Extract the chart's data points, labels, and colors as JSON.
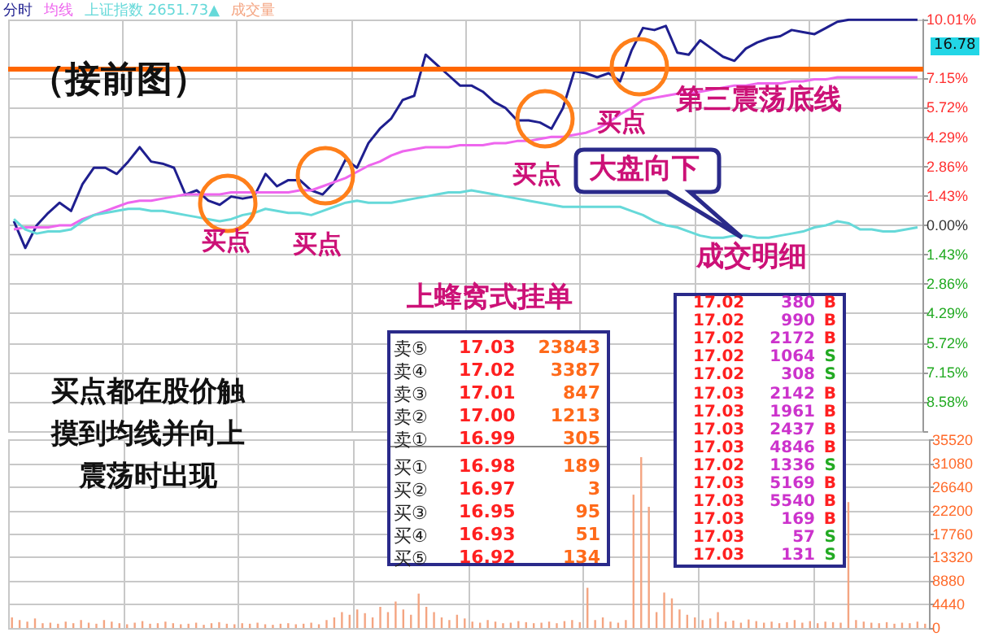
{
  "chart_data": [
    {
      "type": "line",
      "categories": [
        null,
        null,
        null,
        null,
        null,
        null,
        null,
        null,
        null,
        null,
        null,
        null,
        null,
        null,
        null,
        null,
        null,
        null,
        null,
        null,
        null,
        null,
        null,
        null,
        null,
        null,
        null,
        null,
        null,
        null,
        null,
        null,
        null,
        null,
        null,
        null,
        null,
        null,
        null,
        null,
        null,
        null,
        null,
        null,
        null,
        null,
        null,
        null,
        null,
        null,
        null,
        null,
        null,
        null,
        null,
        null,
        null,
        null,
        null,
        null,
        null,
        null,
        null,
        null,
        null,
        null,
        null,
        null,
        null,
        null,
        null,
        null,
        null,
        null,
        null,
        null,
        null,
        null,
        null,
        null
      ],
      "series": [
        {
          "name": "分时",
          "color": "#1f1f8f",
          "values": [
            0.2,
            -1.1,
            0.0,
            0.6,
            1.1,
            0.7,
            2.0,
            2.8,
            2.8,
            2.5,
            3.1,
            3.8,
            3.1,
            3.0,
            2.8,
            1.5,
            1.7,
            1.2,
            1.0,
            1.4,
            1.3,
            1.4,
            2.5,
            1.9,
            2.2,
            2.2,
            1.7,
            1.5,
            2.1,
            3.2,
            2.8,
            4.0,
            4.7,
            5.2,
            6.1,
            6.3,
            8.3,
            7.8,
            7.3,
            6.8,
            6.8,
            6.5,
            6.0,
            5.7,
            5.1,
            5.1,
            5.0,
            4.7,
            5.7,
            7.5,
            7.4,
            7.2,
            7.4,
            7.0,
            8.5,
            9.6,
            9.5,
            9.7,
            8.4,
            8.3,
            9.0,
            8.6,
            8.2,
            8.0,
            8.6,
            8.9,
            9.1,
            9.2,
            9.5,
            9.4,
            9.3,
            9.6,
            9.9,
            10.0,
            10.0,
            10.0,
            10.0,
            10.0,
            10.0,
            10.0
          ]
        },
        {
          "name": "均线",
          "color": "#ee66ee",
          "values": [
            -0.2,
            -0.1,
            -0.1,
            -0.1,
            0.0,
            0.0,
            0.3,
            0.5,
            0.7,
            0.9,
            1.1,
            1.2,
            1.2,
            1.3,
            1.4,
            1.5,
            1.5,
            1.5,
            1.5,
            1.6,
            1.6,
            1.6,
            1.6,
            1.6,
            1.6,
            1.7,
            1.7,
            1.9,
            2.1,
            2.3,
            2.6,
            2.9,
            3.1,
            3.4,
            3.6,
            3.7,
            3.8,
            3.8,
            3.8,
            3.9,
            3.9,
            3.9,
            4.0,
            4.0,
            4.1,
            4.1,
            4.2,
            4.3,
            4.3,
            4.4,
            4.5,
            4.7,
            5.0,
            5.4,
            5.7,
            6.1,
            6.2,
            6.3,
            6.4,
            6.4,
            6.5,
            6.6,
            6.7,
            6.8,
            6.8,
            6.9,
            6.9,
            6.9,
            7.0,
            7.0,
            7.1,
            7.1,
            7.2,
            7.2,
            7.2,
            7.2,
            7.2,
            7.2,
            7.2,
            7.2
          ]
        },
        {
          "name": "上证指数 2651.73▲",
          "color": "#66d9d9",
          "values": [
            0.3,
            -0.2,
            -0.4,
            -0.3,
            -0.3,
            -0.2,
            0.2,
            0.5,
            0.6,
            0.7,
            0.8,
            0.8,
            0.7,
            0.7,
            0.6,
            0.5,
            0.4,
            0.3,
            0.2,
            0.3,
            0.5,
            0.6,
            0.8,
            0.7,
            0.6,
            0.6,
            0.5,
            0.7,
            0.9,
            1.1,
            1.2,
            1.1,
            1.1,
            1.1,
            1.2,
            1.3,
            1.4,
            1.5,
            1.6,
            1.6,
            1.7,
            1.6,
            1.5,
            1.4,
            1.3,
            1.2,
            1.1,
            1.0,
            0.9,
            0.9,
            0.9,
            0.9,
            0.9,
            0.9,
            0.7,
            0.5,
            0.2,
            0.0,
            -0.1,
            -0.3,
            -0.5,
            -0.6,
            -0.6,
            -0.5,
            -0.5,
            -0.6,
            -0.6,
            -0.5,
            -0.4,
            -0.3,
            -0.1,
            0.0,
            0.2,
            0.1,
            -0.2,
            -0.2,
            -0.3,
            -0.3,
            -0.2,
            -0.1
          ]
        }
      ],
      "ylim": [
        -10.01,
        10.01
      ],
      "yticks": [
        {
          "value": 10.01,
          "label": "10.01%"
        },
        {
          "value": 7.15,
          "label": "7.15%"
        },
        {
          "value": 5.72,
          "label": "5.72%"
        },
        {
          "value": 4.29,
          "label": "4.29%"
        },
        {
          "value": 2.86,
          "label": "2.86%"
        },
        {
          "value": 1.43,
          "label": "1.43%"
        },
        {
          "value": 0,
          "label": "0.00%"
        },
        {
          "value": -1.43,
          "label": "1.43%"
        },
        {
          "value": -2.86,
          "label": "2.86%"
        },
        {
          "value": -4.29,
          "label": "4.29%"
        },
        {
          "value": -5.72,
          "label": "5.72%"
        },
        {
          "value": -7.15,
          "label": "7.15%"
        },
        {
          "value": -8.58,
          "label": "8.58%"
        },
        {
          "value": -10.01,
          "label": null
        }
      ],
      "tick_labels": "y",
      "grid": true,
      "legend": "top left",
      "ref_lines": [
        {
          "axis": "y",
          "value": 7.6,
          "label": "第三震荡底线",
          "color": "#ff6600"
        }
      ],
      "annotations": [
        "（接前图）",
        "买点",
        "买点",
        "买点",
        "买点",
        "大盘向下",
        "成交明细",
        "上蜂窝式挂单",
        "买点都在股价触摸到均线并向上震荡时出现",
        "16.78",
        "卖⑤ 17.03 23843",
        "卖④ 17.02 3387",
        "卖③ 17.01 847",
        "卖② 17.00 1213",
        "卖① 16.99 305",
        "买① 16.98 189",
        "买② 16.97 3",
        "买③ 16.95 95",
        "买④ 16.93 51",
        "买⑤ 16.92 134",
        "17.02 380 B",
        "17.02 990 B",
        "17.02 2172 B",
        "17.02 1064 S",
        "17.02 308 S",
        "17.03 2142 B",
        "17.03 1961 B",
        "17.03 2437 B",
        "17.03 4846 B",
        "17.02 1336 S",
        "17.03 5169 B",
        "17.03 5540 B",
        "17.03 169 B",
        "17.03 57 S",
        "17.03 131 S"
      ]
    },
    {
      "type": "bar",
      "categories": [
        null,
        null,
        null,
        null,
        null,
        null,
        null,
        null,
        null,
        null,
        null,
        null,
        null,
        null,
        null,
        null,
        null,
        null,
        null,
        null,
        null,
        null,
        null,
        null,
        null,
        null,
        null,
        null,
        null,
        null,
        null,
        null,
        null,
        null,
        null,
        null,
        null,
        null,
        null,
        null,
        null,
        null,
        null,
        null,
        null,
        null,
        null,
        null,
        null,
        null,
        null,
        null,
        null,
        null,
        null,
        null,
        null,
        null,
        null,
        null,
        null,
        null,
        null,
        null,
        null,
        null,
        null,
        null,
        null,
        null,
        null,
        null,
        null,
        null,
        null,
        null,
        null,
        null,
        null,
        null,
        null,
        null,
        null,
        null,
        null,
        null,
        null,
        null,
        null,
        null,
        null,
        null,
        null,
        null,
        null,
        null,
        null,
        null,
        null,
        null,
        null,
        null,
        null,
        null,
        null,
        null,
        null,
        null,
        null,
        null,
        null,
        null,
        null,
        null,
        null,
        null,
        null,
        null,
        null,
        null
      ],
      "series": [
        {
          "name": "成交量",
          "color": "#f4a582",
          "values": [
            2000,
            1500,
            1200,
            1800,
            900,
            1000,
            800,
            1200,
            900,
            1500,
            1000,
            800,
            1500,
            1200,
            900,
            700,
            1000,
            1300,
            800,
            900,
            1200,
            900,
            700,
            800,
            1000,
            600,
            900,
            1100,
            800,
            700,
            900,
            800,
            1000,
            700,
            600,
            800,
            900,
            700,
            800,
            1000,
            700,
            1500,
            2000,
            3000,
            2500,
            3500,
            2800,
            2000,
            4000,
            3000,
            5000,
            3500,
            2500,
            6500,
            4000,
            3000,
            2000,
            1500,
            2500,
            1800,
            1200,
            1000,
            1500,
            1200,
            900,
            1000,
            1300,
            1100,
            900,
            1000,
            1200,
            900,
            1300,
            1500,
            1100,
            7600,
            1500,
            2000,
            1200,
            1000,
            1500,
            25200,
            32300,
            22900,
            3000,
            6700,
            5600,
            3500,
            2500,
            2000,
            1500,
            1800,
            3000,
            1200,
            1400,
            1000,
            1600,
            1300,
            1000,
            1200,
            900,
            1100,
            1500,
            1000,
            1300,
            900,
            1200,
            1100,
            1000,
            23800,
            1500,
            1200,
            1000,
            900,
            1100,
            800,
            1000,
            900,
            1200,
            800
          ]
        }
      ],
      "ylim": [
        0,
        35520
      ],
      "yticks": [
        0,
        4440,
        8880,
        13320,
        17760,
        22200,
        26640,
        31080,
        35520
      ],
      "tick_labels": "y",
      "grid": true,
      "legend": "top left"
    }
  ]
}
